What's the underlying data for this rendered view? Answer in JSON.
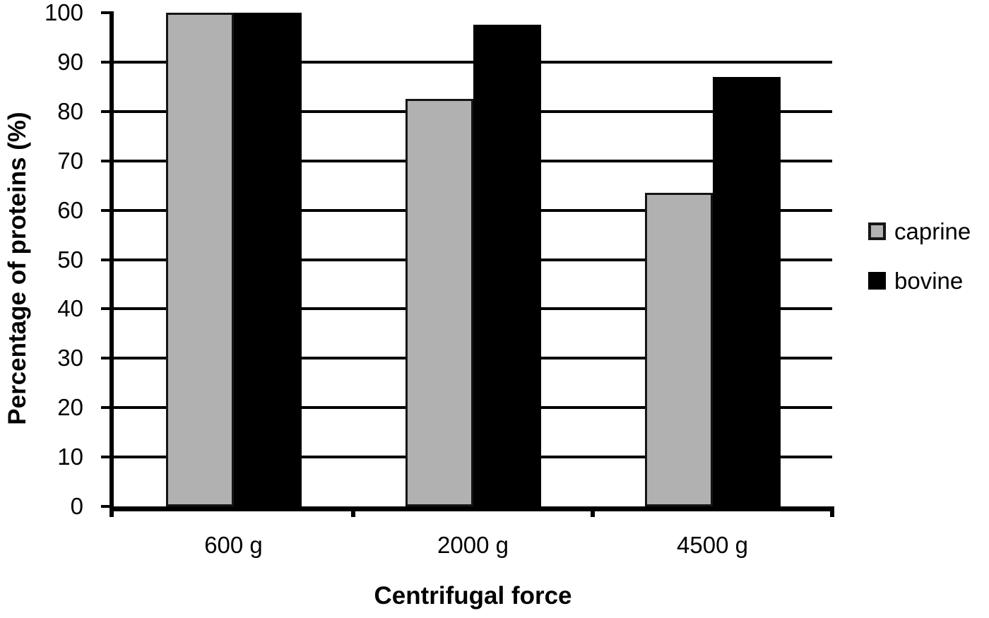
{
  "chart_data": {
    "type": "bar",
    "title": "",
    "categories": [
      "600 g",
      "2000 g",
      "4500 g"
    ],
    "series": [
      {
        "name": "caprine",
        "color": "#b1b1b1",
        "border_color": "#151515",
        "values": [
          100,
          82.5,
          63.5
        ]
      },
      {
        "name": "bovine",
        "color": "#000000",
        "border_color": "#000000",
        "values": [
          100,
          97.5,
          87
        ]
      }
    ],
    "xlabel": "Centrifugal force",
    "ylabel": "Percentage of proteins (%)",
    "ylim": [
      0,
      100
    ],
    "yticks": [
      0,
      10,
      20,
      30,
      40,
      50,
      60,
      70,
      80,
      90,
      100
    ],
    "grid": "horizontal",
    "gridline_color": "#000000",
    "axis_color": "#000000",
    "legend_position": "right",
    "legend": [
      "caprine",
      "bovine"
    ]
  }
}
